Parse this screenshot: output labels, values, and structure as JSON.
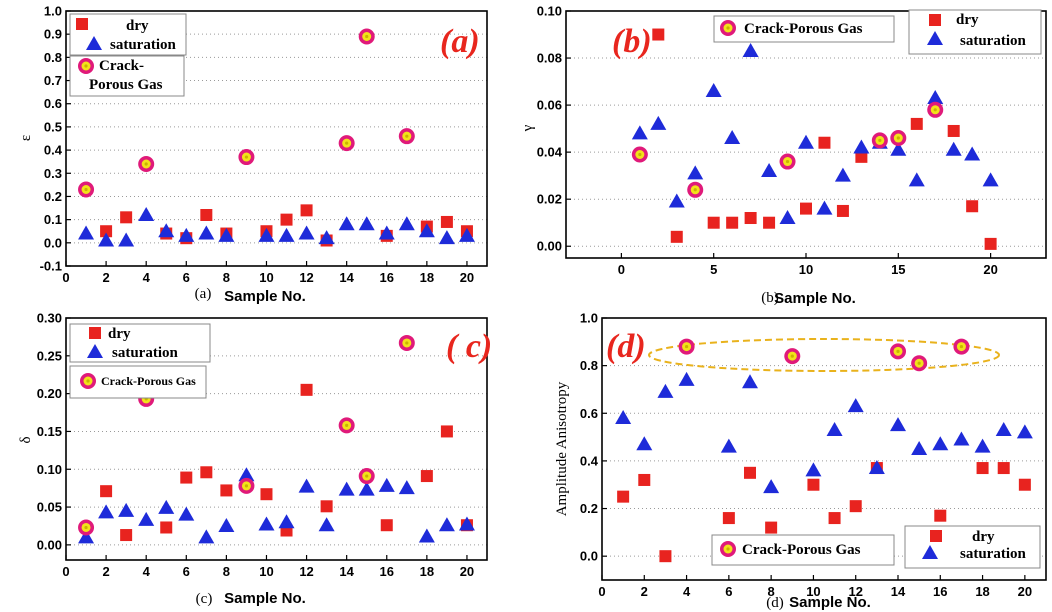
{
  "colors": {
    "dry": "#e8231f",
    "saturation": "#1e2bd9",
    "crack_outer": "#e01a7a",
    "crack_inner": "#f2e21a",
    "ellipse": "#e9b21c",
    "panel_letter": "#e8261e"
  },
  "chart_data": [
    {
      "type": "scatter",
      "panel": "(a)",
      "caption": "(a)",
      "xlabel": "Sample No.",
      "ylabel": "ε",
      "xlim": [
        0,
        21
      ],
      "ylim": [
        -0.1,
        1.0
      ],
      "xticks": [
        0,
        2,
        4,
        6,
        8,
        10,
        12,
        14,
        16,
        18,
        20
      ],
      "yticks": [
        -0.1,
        0.0,
        0.1,
        0.2,
        0.3,
        0.4,
        0.5,
        0.6,
        0.7,
        0.8,
        0.9,
        1.0
      ],
      "ytick_labels": [
        "-0.1",
        "0.0",
        "0.1",
        "0.2",
        "0.3",
        "0.4",
        "0.5",
        "0.6",
        "0.7",
        "0.8",
        "0.9",
        "1.0"
      ],
      "legend": {
        "dry": "dry",
        "saturation": "saturation",
        "crack": "Crack-\nPorous Gas"
      },
      "series": [
        {
          "name": "dry",
          "points": [
            [
              2,
              0.05
            ],
            [
              3,
              0.11
            ],
            [
              5,
              0.04
            ],
            [
              6,
              0.02
            ],
            [
              7,
              0.12
            ],
            [
              8,
              0.04
            ],
            [
              10,
              0.05
            ],
            [
              11,
              0.1
            ],
            [
              12,
              0.14
            ],
            [
              13,
              0.01
            ],
            [
              16,
              0.03
            ],
            [
              18,
              0.07
            ],
            [
              19,
              0.09
            ],
            [
              20,
              0.05
            ]
          ]
        },
        {
          "name": "saturation",
          "points": [
            [
              1,
              0.04
            ],
            [
              2,
              0.01
            ],
            [
              3,
              0.01
            ],
            [
              4,
              0.12
            ],
            [
              5,
              0.05
            ],
            [
              6,
              0.03
            ],
            [
              7,
              0.04
            ],
            [
              8,
              0.03
            ],
            [
              10,
              0.03
            ],
            [
              11,
              0.03
            ],
            [
              12,
              0.04
            ],
            [
              13,
              0.02
            ],
            [
              14,
              0.08
            ],
            [
              15,
              0.08
            ],
            [
              16,
              0.04
            ],
            [
              17,
              0.08
            ],
            [
              18,
              0.05
            ],
            [
              19,
              0.02
            ],
            [
              20,
              0.03
            ]
          ]
        },
        {
          "name": "Crack-Porous Gas",
          "points": [
            [
              1,
              0.23
            ],
            [
              4,
              0.34
            ],
            [
              9,
              0.37
            ],
            [
              14,
              0.43
            ],
            [
              15,
              0.89
            ],
            [
              17,
              0.46
            ]
          ]
        }
      ]
    },
    {
      "type": "scatter",
      "panel": "(b)",
      "caption": "(b)",
      "xlabel": "Sample No.",
      "ylabel": "γ",
      "xlim": [
        -3,
        23
      ],
      "ylim": [
        -0.005,
        0.1
      ],
      "xticks": [
        0,
        5,
        10,
        15,
        20
      ],
      "yticks": [
        0.0,
        0.02,
        0.04,
        0.06,
        0.08,
        0.1
      ],
      "ytick_labels": [
        "0.00",
        "0.02",
        "0.04",
        "0.06",
        "0.08",
        "0.10"
      ],
      "legend": {
        "dry": "dry",
        "saturation": "saturation",
        "crack": "Crack-Porous Gas"
      },
      "series": [
        {
          "name": "dry",
          "points": [
            [
              2,
              0.09
            ],
            [
              3,
              0.004
            ],
            [
              5,
              0.01
            ],
            [
              6,
              0.01
            ],
            [
              7,
              0.012
            ],
            [
              8,
              0.01
            ],
            [
              10,
              0.016
            ],
            [
              11,
              0.044
            ],
            [
              12,
              0.015
            ],
            [
              13,
              0.038
            ],
            [
              16,
              0.052
            ],
            [
              18,
              0.049
            ],
            [
              19,
              0.017
            ],
            [
              20,
              0.001
            ]
          ]
        },
        {
          "name": "saturation",
          "points": [
            [
              1,
              0.048
            ],
            [
              2,
              0.052
            ],
            [
              3,
              0.019
            ],
            [
              4,
              0.031
            ],
            [
              5,
              0.066
            ],
            [
              6,
              0.046
            ],
            [
              7,
              0.083
            ],
            [
              8,
              0.032
            ],
            [
              9,
              0.012
            ],
            [
              10,
              0.044
            ],
            [
              11,
              0.016
            ],
            [
              12,
              0.03
            ],
            [
              13,
              0.042
            ],
            [
              14,
              0.044
            ],
            [
              15,
              0.041
            ],
            [
              16,
              0.028
            ],
            [
              17,
              0.063
            ],
            [
              18,
              0.041
            ],
            [
              19,
              0.039
            ],
            [
              20,
              0.028
            ]
          ]
        },
        {
          "name": "Crack-Porous Gas",
          "points": [
            [
              1,
              0.039
            ],
            [
              4,
              0.024
            ],
            [
              9,
              0.036
            ],
            [
              14,
              0.045
            ],
            [
              15,
              0.046
            ],
            [
              17,
              0.058
            ]
          ]
        }
      ]
    },
    {
      "type": "scatter",
      "panel": "( c)",
      "caption": "(c)",
      "xlabel": "Sample No.",
      "ylabel": "δ",
      "xlim": [
        0,
        21
      ],
      "ylim": [
        -0.02,
        0.3
      ],
      "xticks": [
        0,
        2,
        4,
        6,
        8,
        10,
        12,
        14,
        16,
        18,
        20
      ],
      "yticks": [
        0.0,
        0.05,
        0.1,
        0.15,
        0.2,
        0.25,
        0.3
      ],
      "ytick_labels": [
        "0.00",
        "0.05",
        "0.10",
        "0.15",
        "0.20",
        "0.25",
        "0.30"
      ],
      "legend": {
        "dry": "dry",
        "saturation": "saturation",
        "crack": "Crack-Porous Gas"
      },
      "series": [
        {
          "name": "dry",
          "points": [
            [
              2,
              0.071
            ],
            [
              3,
              0.013
            ],
            [
              5,
              0.023
            ],
            [
              6,
              0.089
            ],
            [
              7,
              0.096
            ],
            [
              8,
              0.072
            ],
            [
              10,
              0.067
            ],
            [
              11,
              0.019
            ],
            [
              12,
              0.205
            ],
            [
              13,
              0.051
            ],
            [
              16,
              0.026
            ],
            [
              18,
              0.091
            ],
            [
              19,
              0.15
            ],
            [
              20,
              0.026
            ]
          ]
        },
        {
          "name": "saturation",
          "points": [
            [
              1,
              0.01
            ],
            [
              2,
              0.043
            ],
            [
              3,
              0.045
            ],
            [
              4,
              0.033
            ],
            [
              5,
              0.049
            ],
            [
              6,
              0.04
            ],
            [
              7,
              0.01
            ],
            [
              8,
              0.025
            ],
            [
              9,
              0.092
            ],
            [
              10,
              0.027
            ],
            [
              11,
              0.03
            ],
            [
              12,
              0.077
            ],
            [
              13,
              0.026
            ],
            [
              14,
              0.073
            ],
            [
              15,
              0.073
            ],
            [
              16,
              0.078
            ],
            [
              17,
              0.075
            ],
            [
              18,
              0.011
            ],
            [
              19,
              0.026
            ],
            [
              20,
              0.027
            ]
          ]
        },
        {
          "name": "Crack-Porous Gas",
          "points": [
            [
              1,
              0.023
            ],
            [
              4,
              0.193
            ],
            [
              9,
              0.078
            ],
            [
              14,
              0.158
            ],
            [
              15,
              0.091
            ],
            [
              17,
              0.267
            ]
          ]
        }
      ]
    },
    {
      "type": "scatter",
      "panel": "(d)",
      "caption": "(d)",
      "xlabel": "Sample No.",
      "ylabel": "Amplitude Anisotropy",
      "xlim": [
        0,
        21
      ],
      "ylim": [
        -0.1,
        1.0
      ],
      "xticks": [
        0,
        2,
        4,
        6,
        8,
        10,
        12,
        14,
        16,
        18,
        20
      ],
      "yticks": [
        0.0,
        0.2,
        0.4,
        0.6,
        0.8,
        1.0
      ],
      "ytick_labels": [
        "0.0",
        "0.2",
        "0.4",
        "0.6",
        "0.8",
        "1.0"
      ],
      "legend": {
        "dry": "dry",
        "saturation": "saturation",
        "crack": "Crack-Porous Gas"
      },
      "series": [
        {
          "name": "dry",
          "points": [
            [
              1,
              0.25
            ],
            [
              2,
              0.32
            ],
            [
              3,
              0.0
            ],
            [
              6,
              0.16
            ],
            [
              7,
              0.35
            ],
            [
              8,
              0.12
            ],
            [
              10,
              0.3
            ],
            [
              11,
              0.16
            ],
            [
              12,
              0.21
            ],
            [
              13,
              0.37
            ],
            [
              16,
              0.17
            ],
            [
              18,
              0.37
            ],
            [
              19,
              0.37
            ],
            [
              20,
              0.3
            ]
          ]
        },
        {
          "name": "saturation",
          "points": [
            [
              1,
              0.58
            ],
            [
              2,
              0.47
            ],
            [
              3,
              0.69
            ],
            [
              4,
              0.74
            ],
            [
              6,
              0.46
            ],
            [
              7,
              0.73
            ],
            [
              8,
              0.29
            ],
            [
              10,
              0.36
            ],
            [
              11,
              0.53
            ],
            [
              12,
              0.63
            ],
            [
              13,
              0.37
            ],
            [
              14,
              0.55
            ],
            [
              15,
              0.45
            ],
            [
              16,
              0.47
            ],
            [
              17,
              0.49
            ],
            [
              18,
              0.46
            ],
            [
              19,
              0.53
            ],
            [
              20,
              0.52
            ]
          ]
        },
        {
          "name": "Crack-Porous Gas",
          "points": [
            [
              4,
              0.88
            ],
            [
              9,
              0.84
            ],
            [
              14,
              0.86
            ],
            [
              15,
              0.81
            ],
            [
              17,
              0.88
            ]
          ]
        }
      ]
    }
  ]
}
